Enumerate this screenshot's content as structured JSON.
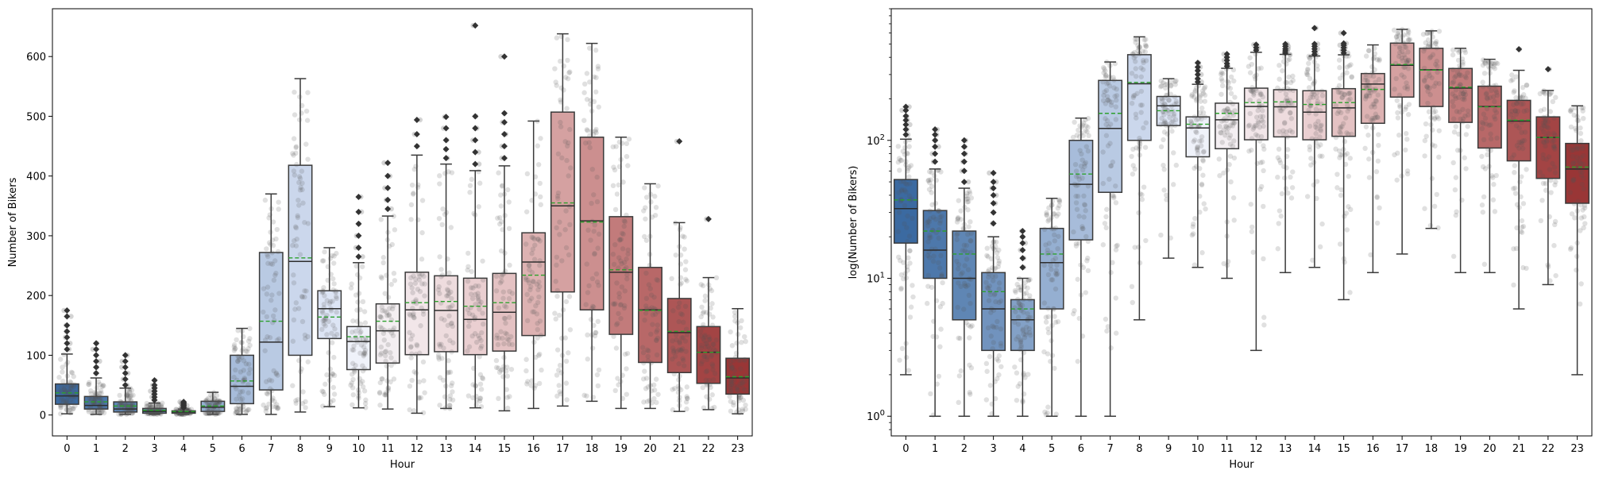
{
  "chart_data": [
    {
      "type": "box",
      "xlabel": "Hour",
      "ylabel": "Number of Bikers",
      "ylim": [
        -35,
        680
      ],
      "yscale": "linear",
      "yticks": [
        0,
        100,
        200,
        300,
        400,
        500,
        600
      ],
      "yticklabels": [
        "0",
        "100",
        "200",
        "300",
        "400",
        "500",
        "600"
      ],
      "categories": [
        "0",
        "1",
        "2",
        "3",
        "4",
        "5",
        "6",
        "7",
        "8",
        "9",
        "10",
        "11",
        "12",
        "13",
        "14",
        "15",
        "16",
        "17",
        "18",
        "19",
        "20",
        "21",
        "22",
        "23"
      ],
      "boxes": [
        {
          "q1": 18,
          "median": 32,
          "q3": 52,
          "lo": 2,
          "hi": 102,
          "mean": 37,
          "fliers": [
            110,
            120,
            130,
            140,
            150,
            165,
            175
          ]
        },
        {
          "q1": 10,
          "median": 16,
          "q3": 31,
          "lo": 1,
          "hi": 62,
          "mean": 22,
          "fliers": [
            70,
            80,
            90,
            100,
            110,
            120
          ]
        },
        {
          "q1": 5,
          "median": 10,
          "q3": 22,
          "lo": 1,
          "hi": 45,
          "mean": 15,
          "fliers": [
            50,
            60,
            70,
            80,
            90,
            100
          ]
        },
        {
          "q1": 3,
          "median": 6,
          "q3": 11,
          "lo": 1,
          "hi": 20,
          "mean": 8,
          "fliers": [
            25,
            30,
            35,
            40,
            45,
            50,
            58
          ]
        },
        {
          "q1": 3,
          "median": 5,
          "q3": 7,
          "lo": 1,
          "hi": 10,
          "mean": 6,
          "fliers": [
            12,
            14,
            16,
            18,
            20,
            22
          ]
        },
        {
          "q1": 6,
          "median": 13,
          "q3": 23,
          "lo": 1,
          "hi": 38,
          "mean": 15,
          "fliers": []
        },
        {
          "q1": 19,
          "median": 48,
          "q3": 100,
          "lo": 1,
          "hi": 145,
          "mean": 57,
          "fliers": []
        },
        {
          "q1": 42,
          "median": 122,
          "q3": 272,
          "lo": 1,
          "hi": 370,
          "mean": 157,
          "fliers": []
        },
        {
          "q1": 100,
          "median": 257,
          "q3": 418,
          "lo": 5,
          "hi": 563,
          "mean": 263,
          "fliers": []
        },
        {
          "q1": 128,
          "median": 178,
          "q3": 208,
          "lo": 14,
          "hi": 280,
          "mean": 164,
          "fliers": []
        },
        {
          "q1": 76,
          "median": 123,
          "q3": 148,
          "lo": 12,
          "hi": 255,
          "mean": 131,
          "fliers": [
            265,
            280,
            300,
            320,
            340,
            365
          ]
        },
        {
          "q1": 87,
          "median": 141,
          "q3": 186,
          "lo": 10,
          "hi": 333,
          "mean": 157,
          "fliers": [
            345,
            360,
            380,
            400,
            422
          ]
        },
        {
          "q1": 101,
          "median": 176,
          "q3": 239,
          "lo": 3,
          "hi": 435,
          "mean": 188,
          "fliers": [
            450,
            470,
            494
          ]
        },
        {
          "q1": 106,
          "median": 175,
          "q3": 233,
          "lo": 11,
          "hi": 420,
          "mean": 190,
          "fliers": [
            430,
            445,
            460,
            480,
            499
          ]
        },
        {
          "q1": 101,
          "median": 160,
          "q3": 229,
          "lo": 12,
          "hi": 409,
          "mean": 182,
          "fliers": [
            420,
            440,
            460,
            480,
            500,
            652
          ]
        },
        {
          "q1": 107,
          "median": 172,
          "q3": 237,
          "lo": 7,
          "hi": 417,
          "mean": 188,
          "fliers": [
            430,
            450,
            470,
            490,
            505,
            600
          ]
        },
        {
          "q1": 133,
          "median": 256,
          "q3": 305,
          "lo": 11,
          "hi": 492,
          "mean": 234,
          "fliers": []
        },
        {
          "q1": 206,
          "median": 350,
          "q3": 507,
          "lo": 15,
          "hi": 638,
          "mean": 355,
          "fliers": []
        },
        {
          "q1": 176,
          "median": 325,
          "q3": 465,
          "lo": 23,
          "hi": 622,
          "mean": 323,
          "fliers": []
        },
        {
          "q1": 135,
          "median": 239,
          "q3": 332,
          "lo": 11,
          "hi": 465,
          "mean": 243,
          "fliers": []
        },
        {
          "q1": 88,
          "median": 176,
          "q3": 247,
          "lo": 11,
          "hi": 387,
          "mean": 175,
          "fliers": []
        },
        {
          "q1": 71,
          "median": 138,
          "q3": 195,
          "lo": 6,
          "hi": 322,
          "mean": 140,
          "fliers": [
            458
          ]
        },
        {
          "q1": 53,
          "median": 105,
          "q3": 148,
          "lo": 9,
          "hi": 230,
          "mean": 105,
          "fliers": [
            328
          ]
        },
        {
          "q1": 35,
          "median": 62,
          "q3": 95,
          "lo": 2,
          "hi": 178,
          "mean": 64,
          "fliers": []
        }
      ]
    },
    {
      "type": "box",
      "xlabel": "Hour",
      "ylabel": "log(Number of Bikers)",
      "ylim": [
        0.72,
        900
      ],
      "yscale": "log",
      "yticks": [
        1,
        10,
        100
      ],
      "yticklabels": [
        "10^0",
        "10^1",
        "10^2"
      ],
      "categories": [
        "0",
        "1",
        "2",
        "3",
        "4",
        "5",
        "6",
        "7",
        "8",
        "9",
        "10",
        "11",
        "12",
        "13",
        "14",
        "15",
        "16",
        "17",
        "18",
        "19",
        "20",
        "21",
        "22",
        "23"
      ],
      "boxes": [
        {
          "q1": 18,
          "median": 32,
          "q3": 52,
          "lo": 2,
          "hi": 102,
          "mean": 37,
          "fliers": [
            110,
            120,
            130,
            140,
            150,
            165,
            175
          ]
        },
        {
          "q1": 10,
          "median": 16,
          "q3": 31,
          "lo": 1,
          "hi": 62,
          "mean": 22,
          "fliers": [
            70,
            80,
            90,
            100,
            110,
            120
          ]
        },
        {
          "q1": 5,
          "median": 10,
          "q3": 22,
          "lo": 1,
          "hi": 45,
          "mean": 15,
          "fliers": [
            50,
            60,
            70,
            80,
            90,
            100
          ]
        },
        {
          "q1": 3,
          "median": 6,
          "q3": 11,
          "lo": 1,
          "hi": 20,
          "mean": 8,
          "fliers": [
            25,
            30,
            35,
            40,
            45,
            50,
            58
          ]
        },
        {
          "q1": 3,
          "median": 5,
          "q3": 7,
          "lo": 1,
          "hi": 10,
          "mean": 6,
          "fliers": [
            12,
            14,
            16,
            18,
            20,
            22
          ]
        },
        {
          "q1": 6,
          "median": 13,
          "q3": 23,
          "lo": 1,
          "hi": 38,
          "mean": 15,
          "fliers": []
        },
        {
          "q1": 19,
          "median": 48,
          "q3": 100,
          "lo": 1,
          "hi": 145,
          "mean": 57,
          "fliers": []
        },
        {
          "q1": 42,
          "median": 122,
          "q3": 272,
          "lo": 1,
          "hi": 370,
          "mean": 157,
          "fliers": []
        },
        {
          "q1": 100,
          "median": 257,
          "q3": 418,
          "lo": 5,
          "hi": 563,
          "mean": 263,
          "fliers": []
        },
        {
          "q1": 128,
          "median": 178,
          "q3": 208,
          "lo": 14,
          "hi": 280,
          "mean": 164,
          "fliers": []
        },
        {
          "q1": 76,
          "median": 123,
          "q3": 148,
          "lo": 12,
          "hi": 255,
          "mean": 131,
          "fliers": [
            265,
            280,
            300,
            320,
            340,
            365
          ]
        },
        {
          "q1": 87,
          "median": 141,
          "q3": 186,
          "lo": 10,
          "hi": 333,
          "mean": 157,
          "fliers": [
            345,
            360,
            380,
            400,
            422
          ]
        },
        {
          "q1": 101,
          "median": 176,
          "q3": 239,
          "lo": 3,
          "hi": 435,
          "mean": 188,
          "fliers": [
            450,
            470,
            494
          ]
        },
        {
          "q1": 106,
          "median": 175,
          "q3": 233,
          "lo": 11,
          "hi": 420,
          "mean": 190,
          "fliers": [
            430,
            445,
            460,
            480,
            499
          ]
        },
        {
          "q1": 101,
          "median": 160,
          "q3": 229,
          "lo": 12,
          "hi": 409,
          "mean": 182,
          "fliers": [
            420,
            440,
            460,
            480,
            500,
            652
          ]
        },
        {
          "q1": 107,
          "median": 172,
          "q3": 237,
          "lo": 7,
          "hi": 417,
          "mean": 188,
          "fliers": [
            430,
            450,
            470,
            490,
            505,
            600
          ]
        },
        {
          "q1": 133,
          "median": 256,
          "q3": 305,
          "lo": 11,
          "hi": 492,
          "mean": 234,
          "fliers": []
        },
        {
          "q1": 206,
          "median": 350,
          "q3": 507,
          "lo": 15,
          "hi": 638,
          "mean": 355,
          "fliers": []
        },
        {
          "q1": 176,
          "median": 325,
          "q3": 465,
          "lo": 23,
          "hi": 622,
          "mean": 323,
          "fliers": []
        },
        {
          "q1": 135,
          "median": 239,
          "q3": 332,
          "lo": 11,
          "hi": 465,
          "mean": 243,
          "fliers": []
        },
        {
          "q1": 88,
          "median": 176,
          "q3": 247,
          "lo": 11,
          "hi": 387,
          "mean": 175,
          "fliers": []
        },
        {
          "q1": 71,
          "median": 138,
          "q3": 195,
          "lo": 6,
          "hi": 322,
          "mean": 140,
          "fliers": [
            458
          ]
        },
        {
          "q1": 53,
          "median": 105,
          "q3": 148,
          "lo": 9,
          "hi": 230,
          "mean": 105,
          "fliers": [
            328
          ]
        },
        {
          "q1": 35,
          "median": 62,
          "q3": 95,
          "lo": 2,
          "hi": 178,
          "mean": 64,
          "fliers": []
        }
      ]
    }
  ],
  "colors": {
    "box_palette": [
      "#3b6aa1",
      "#4d78ab",
      "#5f86b4",
      "#7193be",
      "#83a1c7",
      "#95afd1",
      "#a7bcda",
      "#b9cae3",
      "#cbd7ec",
      "#dde5f5",
      "#eff2fa",
      "#f4eff2",
      "#f2e6e9",
      "#eedcde",
      "#eacfd1",
      "#e4c2c3",
      "#ddb2b2",
      "#d5a1a1",
      "#cc8f8f",
      "#c27b7b",
      "#b86868",
      "#ad5656",
      "#a34444",
      "#993636"
    ],
    "median_line": "#2e2e2e",
    "mean_line": "#2ca02c",
    "strip_points": "#555555",
    "flier": "#333333"
  }
}
